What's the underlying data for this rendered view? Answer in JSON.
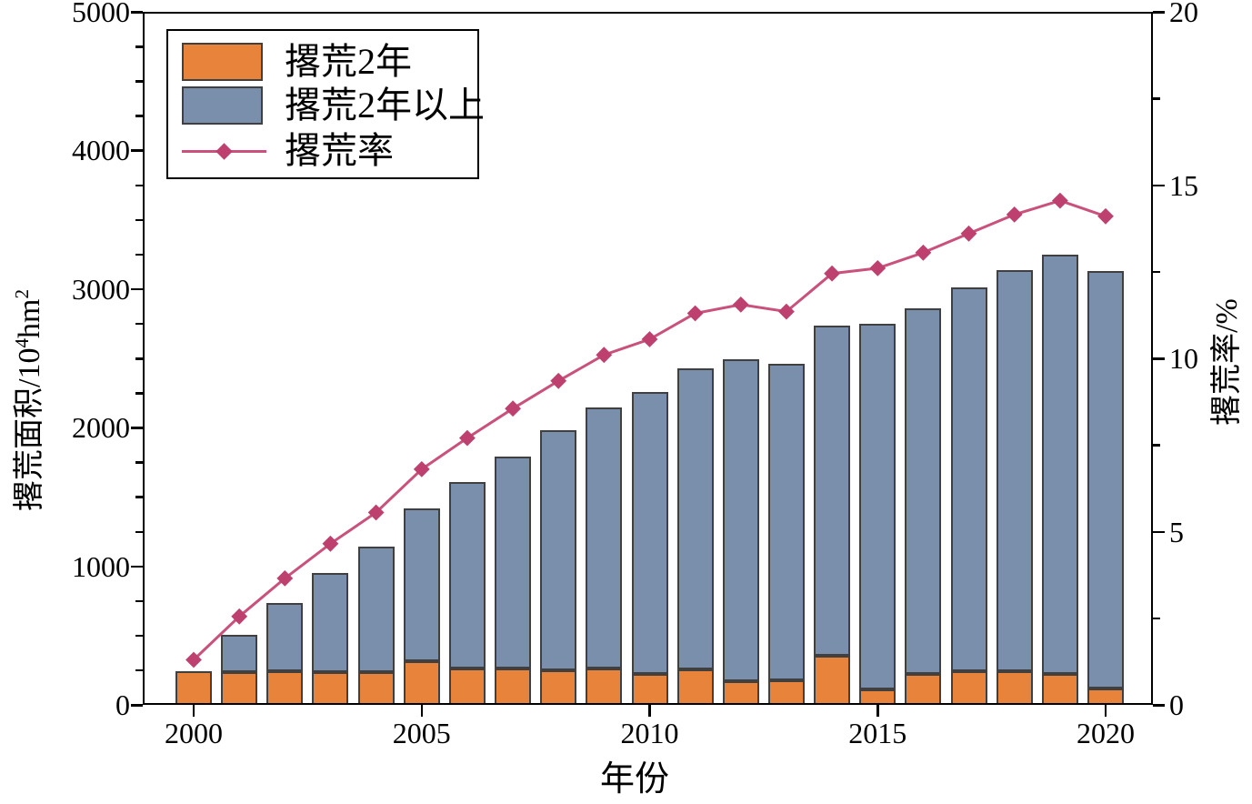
{
  "figure": {
    "background": "#ffffff",
    "frame_color": "#000000"
  },
  "legend": {
    "position": "top-left",
    "items": [
      {
        "label": "撂荒2年",
        "type": "bar-swatch",
        "swatch_color": "#E8833B"
      },
      {
        "label": "撂荒2年以上",
        "type": "bar-swatch",
        "swatch_color": "#7A8FAB"
      },
      {
        "label": "撂荒率",
        "type": "line-sample",
        "line_color": "#C9517B",
        "marker_color": "#BE406F"
      }
    ]
  },
  "axes": {
    "x_title": "年份",
    "left_title": "撂荒面积/10⁴hm²",
    "left_title_parts": {
      "prefix": "撂荒面积/10",
      "sup1": "4",
      "mid": "hm",
      "sup2": "2"
    },
    "right_title": "撂荒率/%",
    "x_tick_labels": [
      "2000",
      "2005",
      "2010",
      "2015",
      "2020"
    ],
    "left_tick_labels": [
      "0",
      "1000",
      "2000",
      "3000",
      "4000",
      "5000"
    ],
    "right_tick_labels": [
      "0",
      "5",
      "10",
      "15",
      "20"
    ]
  },
  "chart_data": {
    "type": "bar",
    "subtype": "stacked-bars-with-line-overlay",
    "title": "",
    "xlabel": "年份",
    "ylabel_left": "撂荒面积/10⁴hm²",
    "ylabel_right": "撂荒率/%",
    "categories": [
      2000,
      2001,
      2002,
      2003,
      2004,
      2005,
      2006,
      2007,
      2008,
      2009,
      2010,
      2011,
      2012,
      2013,
      2014,
      2015,
      2016,
      2017,
      2018,
      2019,
      2020
    ],
    "series": [
      {
        "name": "撂荒2年",
        "type": "bar",
        "stack": "area",
        "axis": "left",
        "color": "#E8833B",
        "values": [
          245,
          235,
          245,
          235,
          235,
          315,
          260,
          260,
          250,
          265,
          220,
          255,
          170,
          175,
          355,
          110,
          225,
          245,
          245,
          220,
          120
        ]
      },
      {
        "name": "撂荒2年以上",
        "type": "bar",
        "stack": "area",
        "axis": "left",
        "color": "#7A8FAB",
        "values": [
          0,
          270,
          490,
          715,
          910,
          1100,
          1350,
          1530,
          1735,
          1880,
          2035,
          2175,
          2325,
          2285,
          2380,
          2640,
          2635,
          2765,
          2890,
          3030,
          3010
        ]
      },
      {
        "name": "撂荒率",
        "type": "line",
        "axis": "right",
        "color": "#C9517B",
        "marker": "diamond",
        "marker_color": "#BE406F",
        "values": [
          1.3,
          2.55,
          3.65,
          4.65,
          5.55,
          6.8,
          7.7,
          8.55,
          9.35,
          10.1,
          10.55,
          11.3,
          11.55,
          11.35,
          12.45,
          12.6,
          13.05,
          13.6,
          14.15,
          14.55,
          14.1
        ]
      }
    ],
    "stacked_totals": [
      245,
      505,
      735,
      950,
      1145,
      1415,
      1610,
      1790,
      1985,
      2145,
      2255,
      2430,
      2495,
      2460,
      2735,
      2750,
      2860,
      3010,
      3135,
      3250,
      3130
    ],
    "ylim_left": [
      0,
      5000
    ],
    "ylim_right": [
      0,
      20
    ],
    "yticks_left": [
      0,
      1000,
      2000,
      3000,
      4000,
      5000
    ],
    "yticks_right": [
      0,
      5,
      10,
      15,
      20
    ],
    "minor_tick_step_left": 250,
    "minor_tick_step_right": 2.5,
    "xticks": [
      2000,
      2005,
      2010,
      2015,
      2020
    ],
    "grid": false,
    "legend_position": "top-left"
  }
}
